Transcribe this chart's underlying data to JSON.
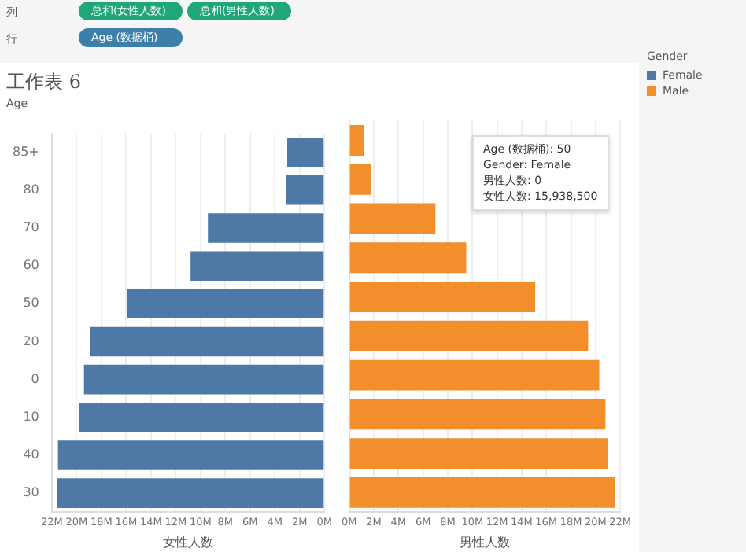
{
  "chart_data": [
    {
      "type": "bar",
      "orientation": "horizontal",
      "title": "工作表 6",
      "ylabel": "Age",
      "xlabel": "女性人数",
      "annotations": [
        "列",
        "总和(女性人数)",
        "总和(男性人数)",
        "行",
        "Age (数据桶)",
        "Age (数据桶):  50",
        "Gender:  Female",
        "男性人数:  0",
        "女性人数:  15,938,500"
      ],
      "categories": [
        "85+",
        "80",
        "70",
        "60",
        "50",
        "20",
        "0",
        "10",
        "40",
        "30"
      ],
      "series": [
        {
          "name": "Female",
          "color": "#4e79a7",
          "values": [
            3.0,
            3.1,
            9.4,
            10.8,
            15.9,
            18.9,
            19.4,
            19.8,
            21.5,
            21.6
          ]
        }
      ],
      "xlim": [
        22,
        0
      ],
      "xticks": [
        {
          "value": 22,
          "label": "22M"
        },
        {
          "value": 20,
          "label": "20M"
        },
        {
          "value": 18,
          "label": "18M"
        },
        {
          "value": 16,
          "label": "16M"
        },
        {
          "value": 14,
          "label": "14M"
        },
        {
          "value": 12,
          "label": "12M"
        },
        {
          "value": 10,
          "label": "10M"
        },
        {
          "value": 8,
          "label": "8M"
        },
        {
          "value": 6,
          "label": "6M"
        },
        {
          "value": 4,
          "label": "4M"
        },
        {
          "value": 2,
          "label": "2M"
        },
        {
          "value": 0,
          "label": "0M"
        }
      ],
      "grid": "x"
    },
    {
      "type": "bar",
      "orientation": "horizontal",
      "xlabel": "男性人数",
      "legend": "right",
      "legend_title": "Gender",
      "categories": [
        null,
        null,
        null,
        null,
        null,
        null,
        null,
        null,
        null,
        null
      ],
      "series": [
        {
          "name": "Male",
          "color": "#f28e2b",
          "values": [
            1.2,
            1.8,
            7.0,
            9.5,
            15.1,
            19.4,
            20.3,
            20.8,
            21.0,
            21.6
          ]
        }
      ],
      "xlim": [
        0,
        22
      ],
      "xticks": [
        {
          "value": 0,
          "label": "0M"
        },
        {
          "value": 2,
          "label": "2M"
        },
        {
          "value": 4,
          "label": "4M"
        },
        {
          "value": 6,
          "label": "6M"
        },
        {
          "value": 8,
          "label": "8M"
        },
        {
          "value": 10,
          "label": "10M"
        },
        {
          "value": 12,
          "label": "12M"
        },
        {
          "value": 14,
          "label": "14M"
        },
        {
          "value": 16,
          "label": "16M"
        },
        {
          "value": 18,
          "label": "18M"
        },
        {
          "value": 20,
          "label": "20M"
        },
        {
          "value": 22,
          "label": "22M"
        }
      ],
      "grid": "x"
    }
  ]
}
